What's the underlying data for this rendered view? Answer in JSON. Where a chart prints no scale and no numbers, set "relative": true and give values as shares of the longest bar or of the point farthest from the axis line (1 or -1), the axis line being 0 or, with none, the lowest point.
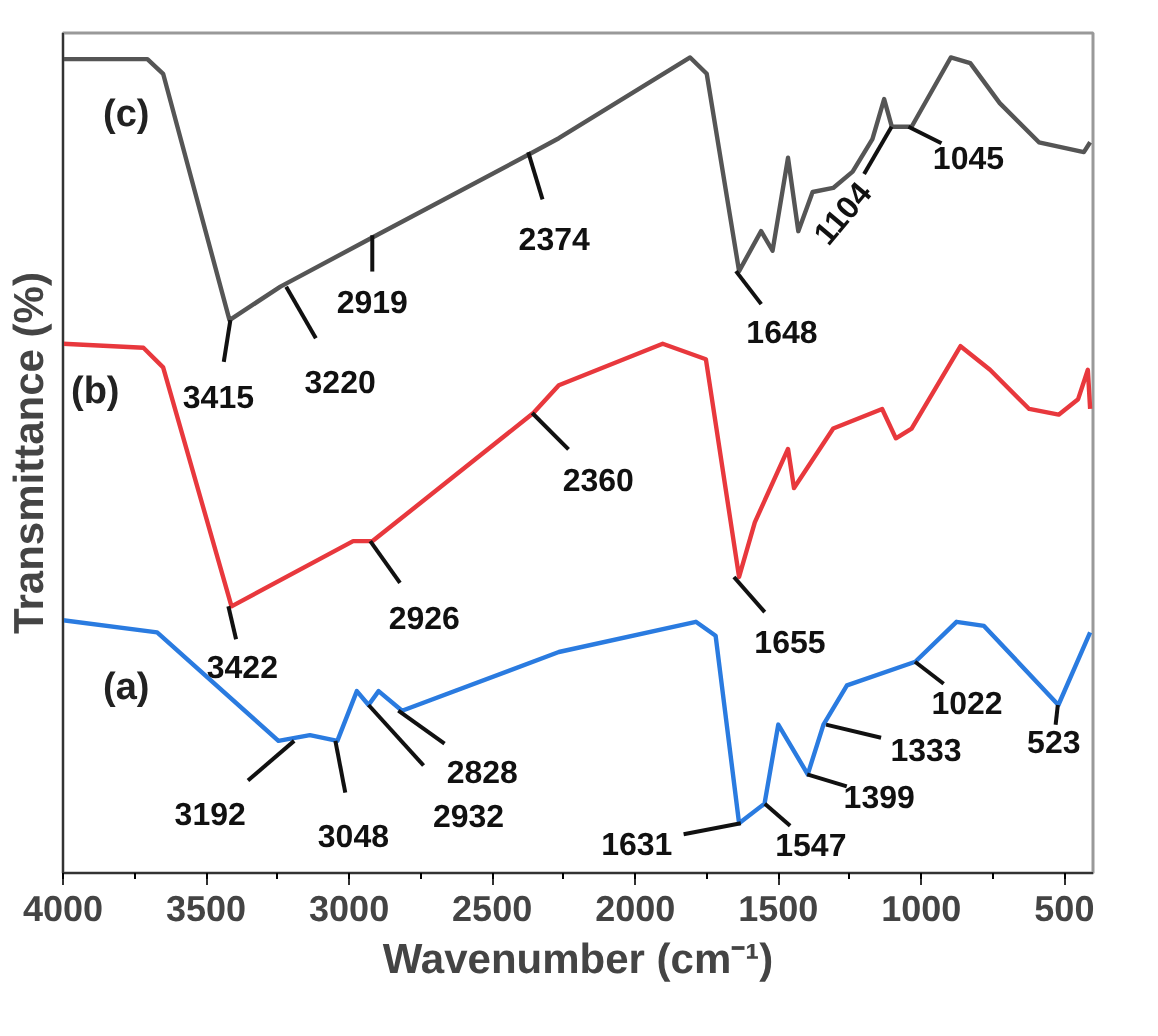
{
  "chart_data": {
    "type": "line",
    "relative": true,
    "xlabel": "Wavenumber (cm⁻¹)",
    "ylabel": "Transmittance (%)",
    "xlim": [
      4000,
      400
    ],
    "xticks": [
      4000,
      3500,
      3000,
      2500,
      2000,
      1500,
      1000,
      500
    ],
    "grid": false,
    "series": [
      {
        "name": "(c)",
        "color": "#555555",
        "x": [
          4000,
          3705,
          3650,
          3418,
          3240,
          2904,
          2356,
          2267,
          1808,
          1750,
          1637,
          1560,
          1520,
          1466,
          1430,
          1380,
          1308,
          1240,
          1171,
          1130,
          1103,
          1034,
          897,
          829,
          726,
          589,
          432,
          410
        ],
        "values": [
          0.998,
          0.998,
          0.98,
          0.678,
          0.719,
          0.782,
          0.884,
          0.901,
          1.0,
          0.98,
          0.738,
          0.787,
          0.763,
          0.877,
          0.787,
          0.835,
          0.84,
          0.86,
          0.9,
          0.949,
          0.915,
          0.915,
          1.0,
          0.993,
          0.944,
          0.896,
          0.884,
          0.896
        ]
      },
      {
        "name": "(b)",
        "color": "#e8383d",
        "x": [
          4000,
          3719,
          3650,
          3411,
          2986,
          2918,
          2356,
          2267,
          1904,
          1753,
          1637,
          1582,
          1466,
          1445,
          1308,
          1137,
          1089,
          1034,
          863,
          760,
          623,
          520,
          452,
          418,
          410
        ],
        "values": [
          0.649,
          0.644,
          0.62,
          0.327,
          0.407,
          0.407,
          0.564,
          0.598,
          0.649,
          0.63,
          0.363,
          0.43,
          0.52,
          0.472,
          0.545,
          0.569,
          0.533,
          0.545,
          0.646,
          0.617,
          0.569,
          0.562,
          0.581,
          0.617,
          0.569
        ]
      },
      {
        "name": "(a)",
        "color": "#2a7be0",
        "x": [
          4000,
          3671,
          3247,
          3137,
          3041,
          2973,
          2932,
          2897,
          2815,
          2267,
          1788,
          1719,
          1637,
          1548,
          1500,
          1397,
          1342,
          1260,
          1021,
          877,
          781,
          521,
          410
        ],
        "values": [
          0.31,
          0.295,
          0.162,
          0.169,
          0.162,
          0.223,
          0.206,
          0.223,
          0.199,
          0.271,
          0.308,
          0.291,
          0.061,
          0.085,
          0.182,
          0.121,
          0.182,
          0.23,
          0.259,
          0.308,
          0.303,
          0.206,
          0.295
        ]
      }
    ],
    "annotations": [
      {
        "text": "3415",
        "x": 3415,
        "y": 0.678
      },
      {
        "text": "3220",
        "x": 3220,
        "y": 0.719
      },
      {
        "text": "2919",
        "x": 2919,
        "y": 0.782
      },
      {
        "text": "2374",
        "x": 2374,
        "y": 0.884
      },
      {
        "text": "1648",
        "x": 1648,
        "y": 0.738
      },
      {
        "text": "1104",
        "x": 1104,
        "y": 0.915
      },
      {
        "text": "1045",
        "x": 1045,
        "y": 0.915
      },
      {
        "text": "3422",
        "x": 3422,
        "y": 0.327
      },
      {
        "text": "2926",
        "x": 2926,
        "y": 0.407
      },
      {
        "text": "2360",
        "x": 2360,
        "y": 0.564
      },
      {
        "text": "1655",
        "x": 1655,
        "y": 0.363
      },
      {
        "text": "3192",
        "x": 3192,
        "y": 0.162
      },
      {
        "text": "3048",
        "x": 3048,
        "y": 0.162
      },
      {
        "text": "2932",
        "x": 2932,
        "y": 0.206
      },
      {
        "text": "2828",
        "x": 2828,
        "y": 0.199
      },
      {
        "text": "1631",
        "x": 1631,
        "y": 0.061
      },
      {
        "text": "1547",
        "x": 1547,
        "y": 0.085
      },
      {
        "text": "1399",
        "x": 1399,
        "y": 0.121
      },
      {
        "text": "1333",
        "x": 1333,
        "y": 0.182
      },
      {
        "text": "1022",
        "x": 1022,
        "y": 0.259
      },
      {
        "text": "523",
        "x": 523,
        "y": 0.206
      }
    ]
  }
}
